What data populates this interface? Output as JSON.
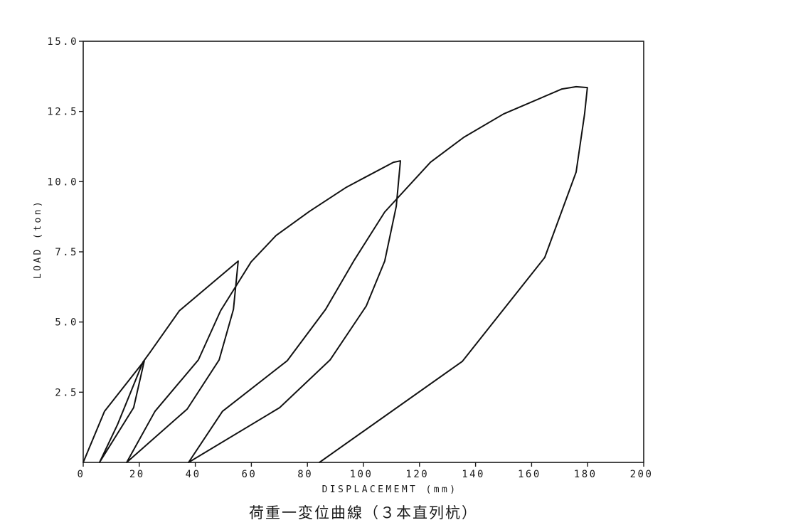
{
  "chart_data": {
    "type": "line",
    "xlabel": "DISPLACEMEMT (mm)",
    "ylabel": "LOAD (ton)",
    "caption": "荷重一変位曲線（３本直列杭）",
    "xlim": [
      0,
      200
    ],
    "ylim": [
      0,
      15
    ],
    "grid": false,
    "x_ticks": [
      0,
      20,
      40,
      60,
      80,
      100,
      120,
      140,
      160,
      180,
      200
    ],
    "x_tick_labels": [
      "0",
      "20",
      "40",
      "60",
      "80",
      "100",
      "120",
      "140",
      "160",
      "180",
      "200"
    ],
    "y_ticks": [
      2.5,
      5.0,
      7.5,
      10.0,
      12.5,
      15.0
    ],
    "y_tick_labels": [
      "2.5",
      "5.0",
      "7.5",
      "10.0",
      "12.5",
      "15.0"
    ],
    "line_color": "#111111",
    "series": [
      {
        "points": [
          [
            0.0,
            0.0
          ],
          [
            7.6,
            1.82
          ],
          [
            21.8,
            3.62
          ],
          [
            18.0,
            1.95
          ],
          [
            5.8,
            0.0
          ],
          [
            12.2,
            1.34
          ],
          [
            21.3,
            3.57
          ],
          [
            23.9,
            3.93
          ],
          [
            34.3,
            5.4
          ],
          [
            55.3,
            7.17
          ],
          [
            53.6,
            5.45
          ],
          [
            48.5,
            3.65
          ],
          [
            37.1,
            1.9
          ],
          [
            15.5,
            0.0
          ],
          [
            25.6,
            1.82
          ],
          [
            41.1,
            3.65
          ],
          [
            49.0,
            5.4
          ],
          [
            59.9,
            7.14
          ],
          [
            68.8,
            8.08
          ],
          [
            80.7,
            8.94
          ],
          [
            93.9,
            9.8
          ],
          [
            110.7,
            10.69
          ],
          [
            113.2,
            10.74
          ],
          [
            111.7,
            9.12
          ],
          [
            107.6,
            7.17
          ],
          [
            101.0,
            5.57
          ],
          [
            88.1,
            3.65
          ],
          [
            70.1,
            1.95
          ],
          [
            37.6,
            0.0
          ],
          [
            49.7,
            1.82
          ],
          [
            72.8,
            3.62
          ],
          [
            86.5,
            5.45
          ],
          [
            96.7,
            7.2
          ],
          [
            107.6,
            8.92
          ],
          [
            123.9,
            10.69
          ],
          [
            135.8,
            11.58
          ],
          [
            150.0,
            12.41
          ],
          [
            170.8,
            13.3
          ],
          [
            175.9,
            13.38
          ],
          [
            179.9,
            13.35
          ],
          [
            178.9,
            12.41
          ],
          [
            175.9,
            10.34
          ],
          [
            164.7,
            7.3
          ],
          [
            135.3,
            3.6
          ],
          [
            84.3,
            0.0
          ]
        ]
      }
    ]
  }
}
